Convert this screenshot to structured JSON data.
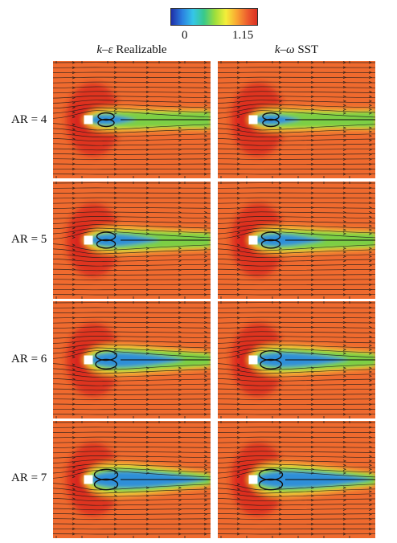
{
  "colorbar": {
    "min_label": "0",
    "max_label": "1.15",
    "colors": [
      "#1f2fa8",
      "#2b7fe0",
      "#35c6e8",
      "#39c98a",
      "#9ede3b",
      "#f4ee3a",
      "#f9a532",
      "#ec5a2e",
      "#d82a20"
    ]
  },
  "columns": [
    {
      "title": "k–ε Realizable",
      "title_parts": {
        "k": "k",
        "dash": "–",
        "symbol": "ε",
        "suffix": " Realizable"
      }
    },
    {
      "title": "k–ω SST",
      "title_parts": {
        "k": "k",
        "dash": "–",
        "symbol": "ω",
        "suffix": " SST"
      }
    }
  ],
  "rows": [
    {
      "label": "AR = 4",
      "ar": 4
    },
    {
      "label": "AR = 5",
      "ar": 5
    },
    {
      "label": "AR = 6",
      "ar": 6
    },
    {
      "label": "AR = 7",
      "ar": 7
    }
  ],
  "field_colors": {
    "freestream": "#ef6a2e",
    "stagnation": "#d8231d",
    "shear_layer": "#f4df38",
    "wake_outer": "#7ccf45",
    "wake_core": "#2f8fd9",
    "streamline": "#1a1a1a",
    "body": "#ffffff"
  }
}
